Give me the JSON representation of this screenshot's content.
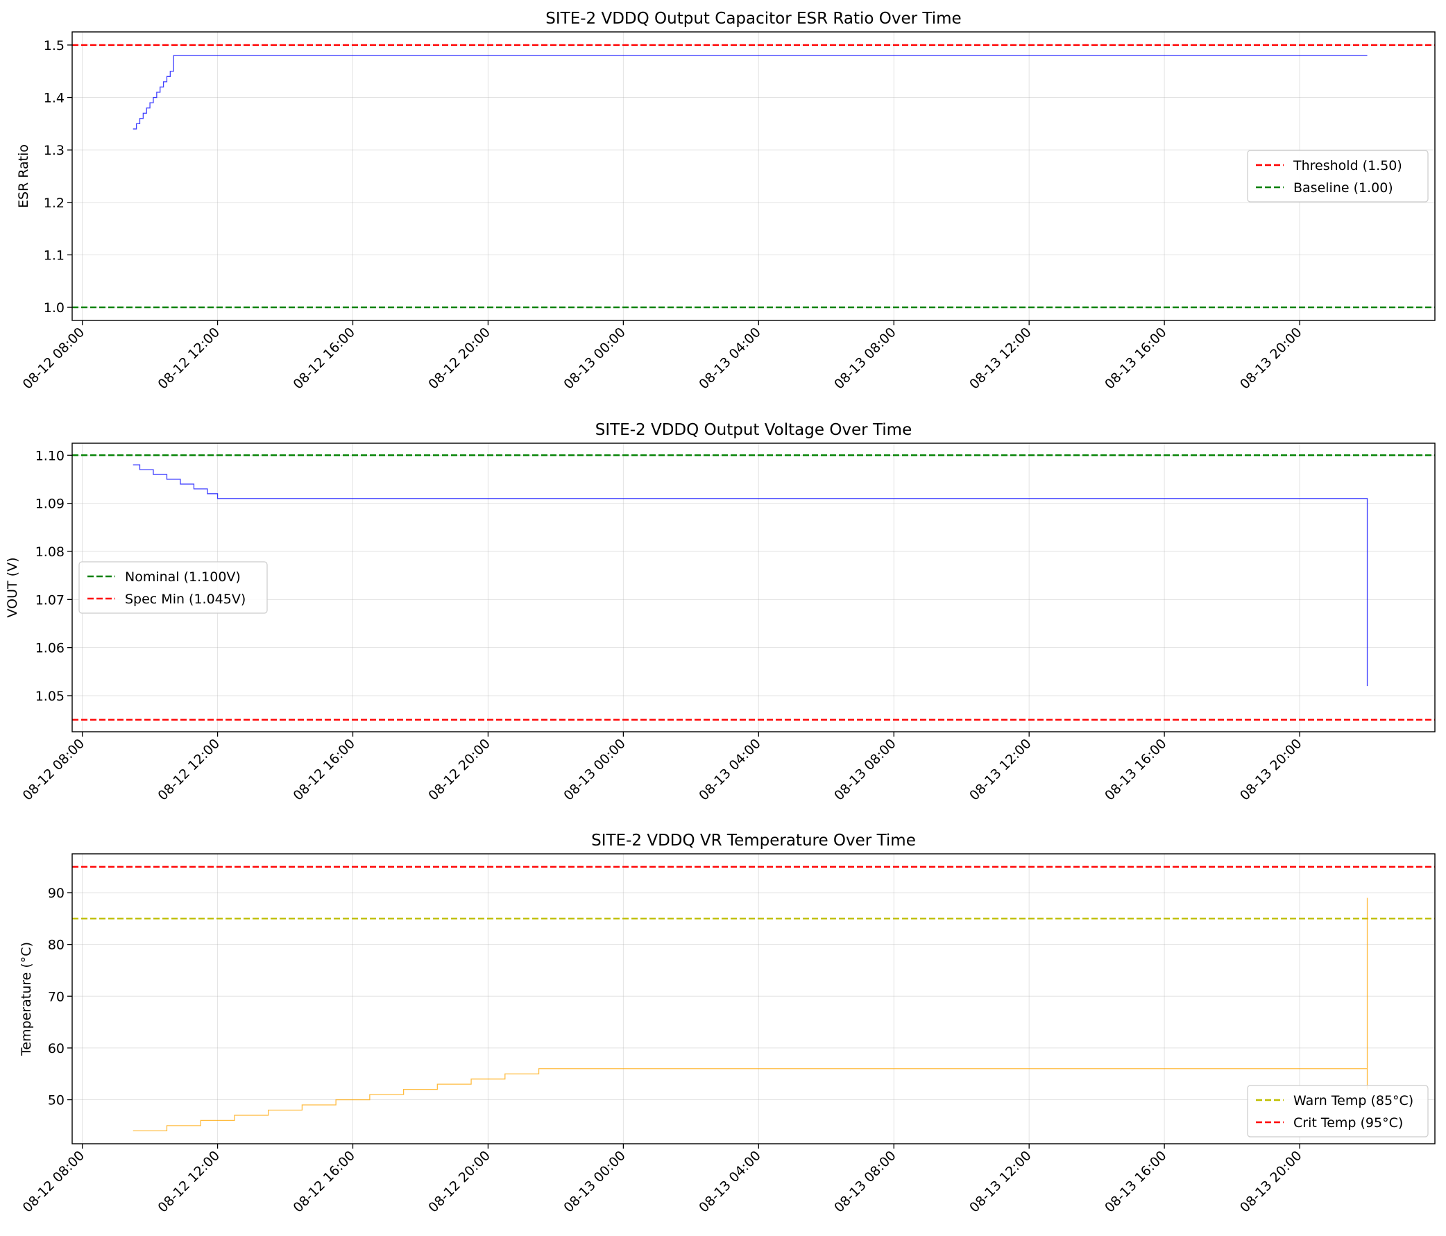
{
  "chart_data": [
    {
      "type": "line",
      "title": "SITE-2 VDDQ Output Capacitor ESR Ratio Over Time",
      "xlabel": "",
      "ylabel": "ESR Ratio",
      "x_range": [
        "2024-08-12 07:42",
        "2024-08-14 00:00"
      ],
      "ylim": [
        0.975,
        1.525
      ],
      "yticks": [
        "1.0",
        "1.1",
        "1.2",
        "1.3",
        "1.4",
        "1.5"
      ],
      "ytick_values": [
        1.0,
        1.1,
        1.2,
        1.3,
        1.4,
        1.5
      ],
      "xticks": [
        "08-12 08:00",
        "08-12 12:00",
        "08-12 16:00",
        "08-12 20:00",
        "08-13 00:00",
        "08-13 04:00",
        "08-13 08:00",
        "08-13 12:00",
        "08-13 16:00",
        "08-13 20:00"
      ],
      "grid": true,
      "legend_position": "center-right",
      "series": [
        {
          "color": "#0000ff",
          "style": "step",
          "x": [
            "08-12 09:30",
            "08-12 09:36",
            "08-12 09:42",
            "08-12 09:48",
            "08-12 09:54",
            "08-12 10:00",
            "08-12 10:06",
            "08-12 10:12",
            "08-12 10:18",
            "08-12 10:24",
            "08-12 10:30",
            "08-12 10:36",
            "08-12 10:42",
            "08-13 22:00"
          ],
          "values": [
            1.34,
            1.35,
            1.36,
            1.37,
            1.38,
            1.39,
            1.4,
            1.41,
            1.42,
            1.43,
            1.44,
            1.45,
            1.48,
            1.48
          ]
        }
      ],
      "reference_lines": [
        {
          "name": "Threshold (1.50)",
          "value": 1.5,
          "color": "#ff0000"
        },
        {
          "name": "Baseline (1.00)",
          "value": 1.0,
          "color": "#008000"
        }
      ]
    },
    {
      "type": "line",
      "title": "SITE-2 VDDQ Output Voltage Over Time",
      "xlabel": "",
      "ylabel": "VOUT (V)",
      "x_range": [
        "2024-08-12 07:42",
        "2024-08-14 00:00"
      ],
      "ylim": [
        1.0425,
        1.1025
      ],
      "yticks": [
        "1.05",
        "1.06",
        "1.07",
        "1.08",
        "1.09",
        "1.10"
      ],
      "ytick_values": [
        1.05,
        1.06,
        1.07,
        1.08,
        1.09,
        1.1
      ],
      "xticks": [
        "08-12 08:00",
        "08-12 12:00",
        "08-12 16:00",
        "08-12 20:00",
        "08-13 00:00",
        "08-13 04:00",
        "08-13 08:00",
        "08-13 12:00",
        "08-13 16:00",
        "08-13 20:00"
      ],
      "grid": true,
      "legend_position": "center-left",
      "series": [
        {
          "color": "#0000ff",
          "style": "step",
          "x": [
            "08-12 09:30",
            "08-12 09:42",
            "08-12 10:06",
            "08-12 10:30",
            "08-12 10:54",
            "08-12 11:18",
            "08-12 11:42",
            "08-12 12:00",
            "08-13 22:00",
            "08-13 22:00"
          ],
          "values": [
            1.098,
            1.097,
            1.096,
            1.095,
            1.094,
            1.093,
            1.092,
            1.091,
            1.09,
            1.052
          ]
        }
      ],
      "reference_lines": [
        {
          "name": "Nominal (1.100V)",
          "value": 1.1,
          "color": "#008000"
        },
        {
          "name": "Spec Min (1.045V)",
          "value": 1.045,
          "color": "#ff0000"
        }
      ]
    },
    {
      "type": "line",
      "title": "SITE-2 VDDQ VR Temperature Over Time",
      "xlabel": "",
      "ylabel": "Temperature (°C)",
      "x_range": [
        "2024-08-12 07:42",
        "2024-08-14 00:00"
      ],
      "ylim": [
        41.5,
        97.5
      ],
      "yticks": [
        "50",
        "60",
        "70",
        "80",
        "90"
      ],
      "ytick_values": [
        50,
        60,
        70,
        80,
        90
      ],
      "xticks": [
        "08-12 08:00",
        "08-12 12:00",
        "08-12 16:00",
        "08-12 20:00",
        "08-13 00:00",
        "08-13 04:00",
        "08-13 08:00",
        "08-13 12:00",
        "08-13 16:00",
        "08-13 20:00"
      ],
      "grid": true,
      "legend_position": "lower-right",
      "series": [
        {
          "color": "#ffa500",
          "style": "step",
          "x": [
            "08-12 09:30",
            "08-12 10:30",
            "08-12 11:30",
            "08-12 12:30",
            "08-12 13:30",
            "08-12 14:30",
            "08-12 15:30",
            "08-12 16:30",
            "08-12 17:30",
            "08-12 18:30",
            "08-12 19:30",
            "08-12 20:30",
            "08-12 21:30",
            "08-13 22:00",
            "08-13 22:00",
            "08-13 22:00"
          ],
          "values": [
            44,
            45,
            46,
            47,
            48,
            49,
            50,
            51,
            52,
            53,
            54,
            55,
            56,
            57,
            89,
            52
          ]
        }
      ],
      "reference_lines": [
        {
          "name": "Warn Temp (85°C)",
          "value": 85,
          "color": "#bfbf00"
        },
        {
          "name": "Crit Temp (95°C)",
          "value": 95,
          "color": "#ff0000"
        }
      ]
    }
  ]
}
